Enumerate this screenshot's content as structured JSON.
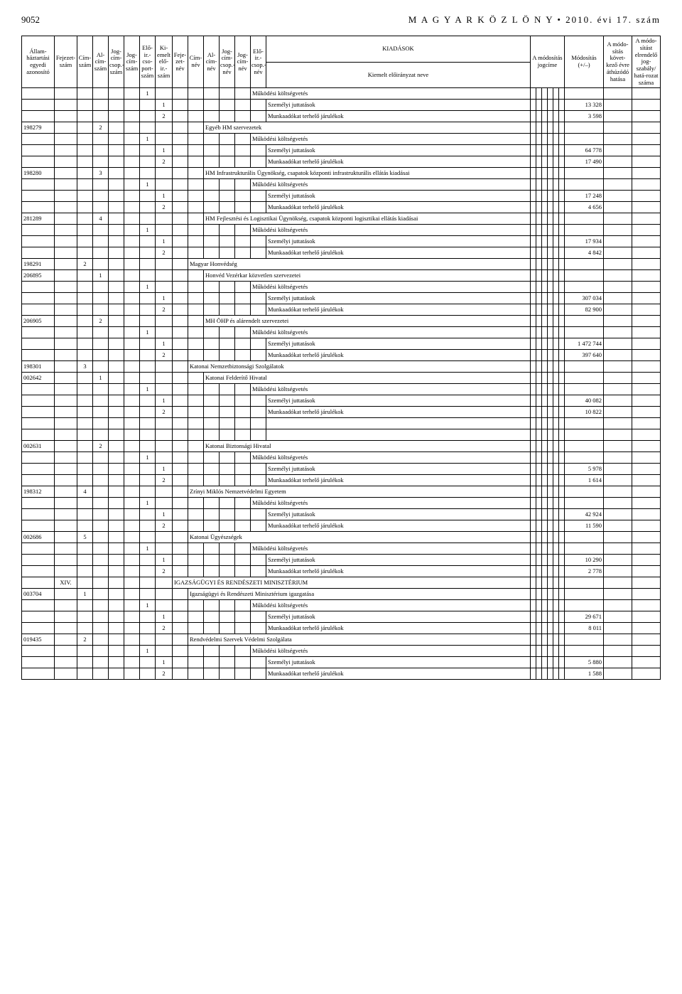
{
  "header": {
    "pagenum": "9052",
    "title": "M A G Y A R   K Ö Z L Ö N Y • 2010. évi 17. szám"
  },
  "colHeaders": {
    "c1": "Állam-háztartási egyedi azonosító",
    "c2": "Fejezet-szám",
    "c3": "Cím-szám",
    "c4": "Al-cím-szám",
    "c5": "Jog-cím-csop.-szám",
    "c6": "Jog-cím-szám",
    "c7": "Elő-ir.-cso-port-szám",
    "c8": "Ki-emelt elő-ir.-szám",
    "c9": "Feje-zet-név",
    "c10": "Cím-név",
    "c11": "Al-cím-név",
    "c12": "Jog-cím-csop.-név",
    "c13": "Jog-cím-név",
    "c14": "Elő-ir.-csop.-név",
    "kiad": "KIADÁSOK",
    "kien": "Kiemelt előirányzat neve",
    "jog": "A módosítás jogcíme",
    "mod": "Módosítás (+/–)",
    "ath": "A módo-sítás követ-kező évre áthúzódó hatása",
    "elr": "A módo-sítást elrendelő jog-szabály/ hatá-rozat száma"
  },
  "txt": {
    "muk": "Működési költségvetés",
    "szj": "Személyi juttatások",
    "mkt": "Munkaadókat terhelő járulékok",
    "egyebhm": "Egyéb HM szervezetek",
    "hminfra": "HM Infrastrukturális Ügynökség, csapatok központi infrastrukturális ellátás kiadásai",
    "hmfejl": "HM Fejlesztési és Logisztikai Ügynökség, csapatok központi logisztikai ellátás kiadásai",
    "mhonv": "Magyar Honvédség",
    "hvk": "Honvéd Vezérkar közvetlen szervezetei",
    "mhohp": "MH ÖHP és alárendelt szervezetei",
    "knbsz": "Katonai Nemzetbiztonsági Szolgálatok",
    "kfh": "Katonai Felderítő Hivatal",
    "kbh": "Katonai Biztonsági Hivatal",
    "zmne": "Zrínyi Miklós Nemzetvédelmi Egyetem",
    "kugy": "Katonai Ügyészségek",
    "irm": "IGAZSÁGÜGYI ÉS RENDÉSZETI MINISZTÉRIUM",
    "irmig": "Igazságügyi és Rendészeti Minisztérium igazgatása",
    "rszvsz": "Rendvédelmi Szervek Védelmi Szolgálata",
    "xiv": "XIV."
  },
  "v": {
    "r1": "13 328",
    "r2": "3 598",
    "r3": "64 778",
    "r4": "17 490",
    "r5": "17 248",
    "r6": "4 656",
    "r7": "17 934",
    "r8": "4 842",
    "r9": "307 034",
    "r10": "82 900",
    "r11": "1 472 744",
    "r12": "397 640",
    "r13": "40 082",
    "r14": "10 822",
    "r15": "5 978",
    "r16": "1 614",
    "r17": "42 924",
    "r18": "11 590",
    "r19": "10 290",
    "r20": "2 778",
    "r21": "29 671",
    "r22": "8 011",
    "r23": "5 880",
    "r24": "1 588"
  },
  "id": {
    "i1": "198279",
    "i2": "198280",
    "i3": "281289",
    "i4": "198291",
    "i5": "206895",
    "i6": "206905",
    "i7": "198301",
    "i8": "002642",
    "i9": "002631",
    "i10": "198312",
    "i11": "002686",
    "i12": "003704",
    "i13": "019435"
  }
}
